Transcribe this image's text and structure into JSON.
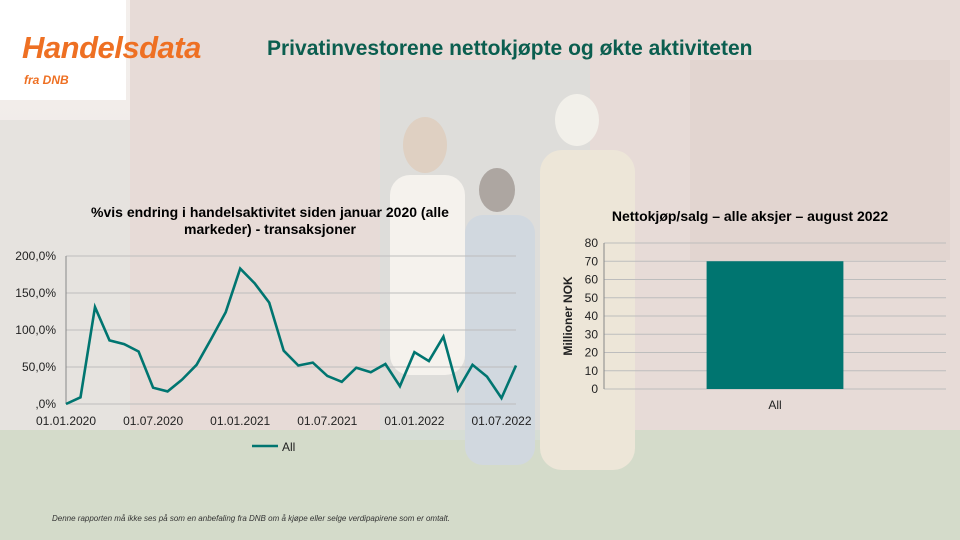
{
  "brand": {
    "name": "Handelsdata",
    "sub": "fra DNB"
  },
  "headline": "Privatinvestorene nettokjøpte og økte aktiviteten",
  "footnote": "Denne rapporten må ikke ses på som en anbefaling fra DNB om å kjøpe eller selge verdipapirene som er omtalt.",
  "colors": {
    "brand_orange": "#ee7023",
    "series_teal": "#007570",
    "headline_green": "#0b5e4f"
  },
  "chart_data": [
    {
      "type": "line",
      "title": "%vis endring i handelsaktivitet siden januar 2020 (alle markeder) - transaksjoner",
      "ytick_labels": [
        "200,0%",
        "150,0%",
        "100,0%",
        "50,0%",
        ",0%"
      ],
      "xtick_labels": [
        "01.01.2020",
        "01.07.2020",
        "01.01.2021",
        "01.07.2021",
        "01.01.2022",
        "01.07.2022"
      ],
      "ylim": [
        0,
        200
      ],
      "grid": true,
      "legend_position": "bottom",
      "x_start": "2020-01",
      "x_end": "2022-08",
      "series": [
        {
          "name": "All",
          "x": [
            "2020-01",
            "2020-02",
            "2020-03",
            "2020-04",
            "2020-05",
            "2020-06",
            "2020-07",
            "2020-08",
            "2020-09",
            "2020-10",
            "2020-11",
            "2020-12",
            "2021-01",
            "2021-02",
            "2021-03",
            "2021-04",
            "2021-05",
            "2021-06",
            "2021-07",
            "2021-08",
            "2021-09",
            "2021-10",
            "2021-11",
            "2021-12",
            "2022-01",
            "2022-02",
            "2022-03",
            "2022-04",
            "2022-05",
            "2022-06",
            "2022-07",
            "2022-08"
          ],
          "values": [
            0,
            9,
            131,
            86,
            81,
            71,
            22,
            17,
            33,
            53,
            88,
            124,
            183,
            163,
            137,
            72,
            52,
            56,
            38,
            30,
            49,
            43,
            54,
            24,
            70,
            58,
            91,
            19,
            53,
            37,
            8,
            52
          ]
        }
      ]
    },
    {
      "type": "bar",
      "title": "Nettokjøp/salg – alle aksjer – august 2022",
      "ylabel": "Millioner NOK",
      "ylim": [
        0,
        80
      ],
      "yticks": [
        0,
        10,
        20,
        30,
        40,
        50,
        60,
        70,
        80
      ],
      "categories": [
        "All"
      ],
      "values": [
        70
      ],
      "grid": true
    }
  ]
}
